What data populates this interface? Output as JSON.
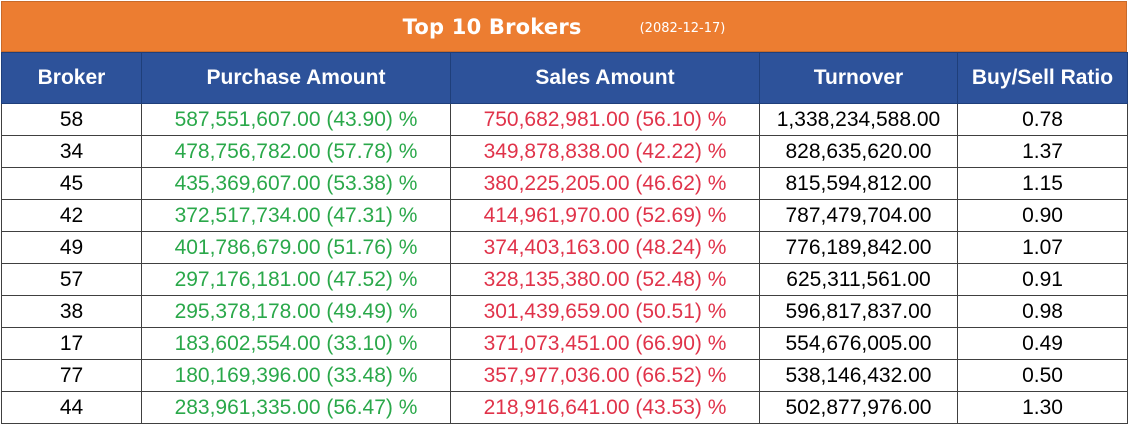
{
  "title": "Top 10 Brokers",
  "date": "(2082-12-17)",
  "colors": {
    "title_bg": "#ec7d31",
    "header_bg": "#2d529a",
    "buy": "#2aa84a",
    "sell": "#e0334a"
  },
  "headers": [
    "Broker",
    "Purchase Amount",
    "Sales Amount",
    "Turnover",
    "Buy/Sell Ratio"
  ],
  "rows": [
    [
      "58",
      "587,551,607.00 (43.90) %",
      "750,682,981.00 (56.10) %",
      "1,338,234,588.00",
      "0.78"
    ],
    [
      "34",
      "478,756,782.00 (57.78) %",
      "349,878,838.00 (42.22) %",
      "828,635,620.00",
      "1.37"
    ],
    [
      "45",
      "435,369,607.00 (53.38) %",
      "380,225,205.00 (46.62) %",
      "815,594,812.00",
      "1.15"
    ],
    [
      "42",
      "372,517,734.00 (47.31) %",
      "414,961,970.00 (52.69) %",
      "787,479,704.00",
      "0.90"
    ],
    [
      "49",
      "401,786,679.00 (51.76) %",
      "374,403,163.00 (48.24) %",
      "776,189,842.00",
      "1.07"
    ],
    [
      "57",
      "297,176,181.00 (47.52) %",
      "328,135,380.00 (52.48) %",
      "625,311,561.00",
      "0.91"
    ],
    [
      "38",
      "295,378,178.00 (49.49) %",
      "301,439,659.00 (50.51) %",
      "596,817,837.00",
      "0.98"
    ],
    [
      "17",
      "183,602,554.00 (33.10) %",
      "371,073,451.00 (66.90) %",
      "554,676,005.00",
      "0.49"
    ],
    [
      "77",
      "180,169,396.00 (33.48) %",
      "357,977,036.00 (66.52) %",
      "538,146,432.00",
      "0.50"
    ],
    [
      "44",
      "283,961,335.00 (56.47) %",
      "218,916,641.00 (43.53) %",
      "502,877,976.00",
      "1.30"
    ]
  ]
}
